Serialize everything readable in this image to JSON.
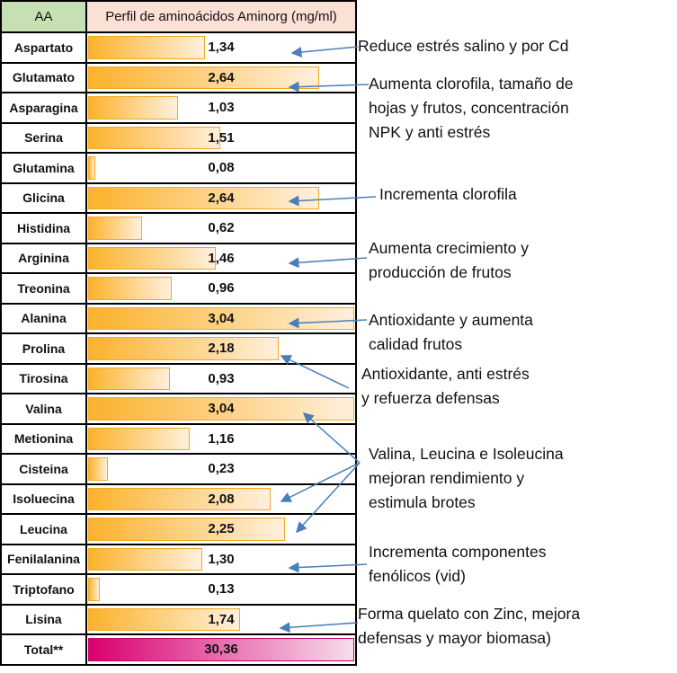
{
  "header": {
    "aa": "AA",
    "profile": "Perfil de aminoácidos Aminorg (mg/ml)"
  },
  "max_value": 3.04,
  "rows": [
    {
      "name": "Aspartato",
      "value": 1.34,
      "label": "1,34"
    },
    {
      "name": "Glutamato",
      "value": 2.64,
      "label": "2,64"
    },
    {
      "name": "Asparagina",
      "value": 1.03,
      "label": "1,03"
    },
    {
      "name": "Serina",
      "value": 1.51,
      "label": "1,51"
    },
    {
      "name": "Glutamina",
      "value": 0.08,
      "label": "0,08"
    },
    {
      "name": "Glicina",
      "value": 2.64,
      "label": "2,64"
    },
    {
      "name": "Histidina",
      "value": 0.62,
      "label": "0,62"
    },
    {
      "name": "Arginina",
      "value": 1.46,
      "label": "1,46"
    },
    {
      "name": "Treonina",
      "value": 0.96,
      "label": "0,96"
    },
    {
      "name": "Alanina",
      "value": 3.04,
      "label": "3,04"
    },
    {
      "name": "Prolina",
      "value": 2.18,
      "label": "2,18"
    },
    {
      "name": "Tirosina",
      "value": 0.93,
      "label": "0,93"
    },
    {
      "name": "Valina",
      "value": 3.04,
      "label": "3,04"
    },
    {
      "name": "Metionina",
      "value": 1.16,
      "label": "1,16"
    },
    {
      "name": "Cisteina",
      "value": 0.23,
      "label": "0,23"
    },
    {
      "name": "Isoluecina",
      "value": 2.08,
      "label": "2,08"
    },
    {
      "name": "Leucina",
      "value": 2.25,
      "label": "2,25"
    },
    {
      "name": "Fenilalanina",
      "value": 1.3,
      "label": "1,30"
    },
    {
      "name": "Triptofano",
      "value": 0.13,
      "label": "0,13"
    },
    {
      "name": "Lisina",
      "value": 1.74,
      "label": "1,74"
    }
  ],
  "total": {
    "name": "Total**",
    "label": "30,36"
  },
  "notes": [
    [
      "Reduce estrés salino y por Cd"
    ],
    [
      "Aumenta clorofila, tamaño de",
      "hojas y frutos, concentración",
      "NPK y anti estrés"
    ],
    [
      "Incrementa clorofila"
    ],
    [
      "Aumenta crecimiento y",
      "producción de frutos"
    ],
    [
      "Antioxidante y aumenta",
      "calidad frutos"
    ],
    [
      "Antioxidante, anti estrés",
      " y refuerza defensas"
    ],
    [
      "Valina, Leucina e Isoleucina",
      "mejoran rendimiento y",
      "estimula brotes"
    ],
    [
      "Incrementa componentes",
      " fenólicos (vid)"
    ],
    [
      "Forma quelato con Zinc, mejora",
      "defensas y mayor biomasa)"
    ]
  ],
  "arrow_color": "#4a7ebb"
}
